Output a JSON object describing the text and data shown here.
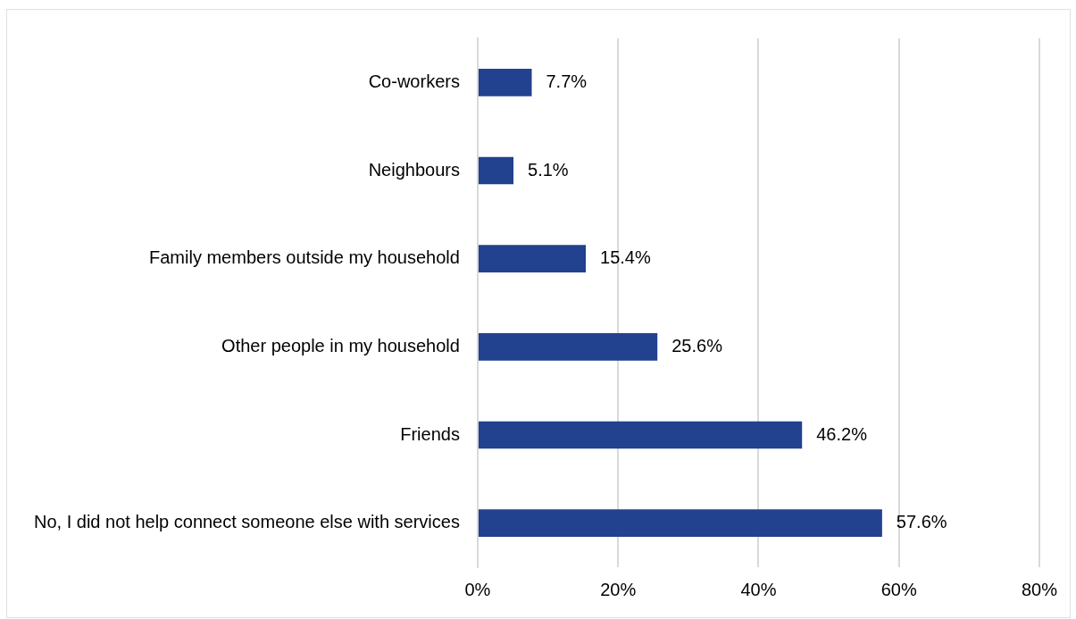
{
  "chart_data": {
    "type": "bar",
    "orientation": "horizontal",
    "categories": [
      "Co-workers",
      "Neighbours",
      "Family members outside my household",
      "Other people in my household",
      "Friends",
      "No, I did not help connect someone else with services"
    ],
    "values": [
      7.7,
      5.1,
      15.4,
      25.6,
      46.2,
      57.6
    ],
    "value_labels": [
      "7.7%",
      "5.1%",
      "15.4%",
      "25.6%",
      "46.2%",
      "57.6%"
    ],
    "color": "#22418e",
    "xlim": [
      0,
      80
    ],
    "xticks": [
      {
        "value": 0,
        "label": "0%"
      },
      {
        "value": 20,
        "label": "20%"
      },
      {
        "value": 40,
        "label": "40%"
      },
      {
        "value": 60,
        "label": "60%"
      },
      {
        "value": 80,
        "label": "80%"
      }
    ],
    "grid": "x",
    "legend": false
  }
}
